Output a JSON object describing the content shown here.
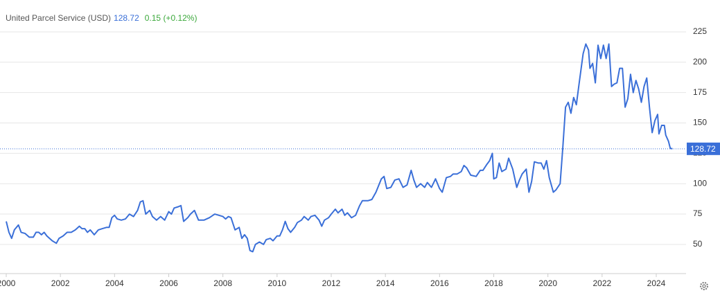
{
  "chart_data": {
    "type": "line",
    "title": "United Parcel Service (USD)",
    "last_price": 128.72,
    "change_label": "0.15 (+0.12%)",
    "color": "#3a6fd8",
    "grid": true,
    "xlim": [
      1999.77,
      2025.1
    ],
    "ylim": [
      26,
      251.2
    ],
    "xticks": [
      2000,
      2002,
      2004,
      2006,
      2008,
      2010,
      2012,
      2014,
      2016,
      2018,
      2020,
      2022,
      2024
    ],
    "yticks": [
      50,
      75,
      100,
      125,
      150,
      175,
      200,
      225
    ],
    "x": [
      2000.0,
      2000.1,
      2000.2,
      2000.3,
      2000.45,
      2000.55,
      2000.7,
      2000.85,
      2001.0,
      2001.1,
      2001.2,
      2001.3,
      2001.4,
      2001.5,
      2001.6,
      2001.7,
      2001.85,
      2001.95,
      2002.1,
      2002.25,
      2002.4,
      2002.55,
      2002.7,
      2002.8,
      2002.9,
      2003.0,
      2003.1,
      2003.25,
      2003.4,
      2003.55,
      2003.7,
      2003.8,
      2003.9,
      2004.0,
      2004.1,
      2004.25,
      2004.4,
      2004.55,
      2004.7,
      2004.85,
      2004.95,
      2005.05,
      2005.15,
      2005.3,
      2005.4,
      2005.55,
      2005.7,
      2005.85,
      2006.0,
      2006.1,
      2006.2,
      2006.35,
      2006.45,
      2006.55,
      2006.7,
      2006.8,
      2006.95,
      2007.1,
      2007.3,
      2007.5,
      2007.7,
      2007.85,
      2008.0,
      2008.1,
      2008.2,
      2008.3,
      2008.45,
      2008.6,
      2008.7,
      2008.8,
      2008.9,
      2009.0,
      2009.1,
      2009.2,
      2009.35,
      2009.5,
      2009.6,
      2009.75,
      2009.85,
      2010.0,
      2010.1,
      2010.2,
      2010.3,
      2010.4,
      2010.5,
      2010.65,
      2010.75,
      2010.9,
      2011.0,
      2011.15,
      2011.25,
      2011.4,
      2011.55,
      2011.65,
      2011.75,
      2011.9,
      2012.0,
      2012.15,
      2012.25,
      2012.4,
      2012.5,
      2012.6,
      2012.75,
      2012.9,
      2013.05,
      2013.15,
      2013.35,
      2013.5,
      2013.65,
      2013.85,
      2013.95,
      2014.05,
      2014.2,
      2014.35,
      2014.5,
      2014.65,
      2014.8,
      2014.95,
      2015.05,
      2015.15,
      2015.3,
      2015.45,
      2015.55,
      2015.7,
      2015.85,
      2016.0,
      2016.1,
      2016.25,
      2016.4,
      2016.5,
      2016.65,
      2016.8,
      2016.9,
      2017.0,
      2017.15,
      2017.35,
      2017.5,
      2017.6,
      2017.75,
      2017.85,
      2017.95,
      2018.0,
      2018.1,
      2018.2,
      2018.3,
      2018.45,
      2018.55,
      2018.7,
      2018.85,
      2018.95,
      2019.05,
      2019.2,
      2019.3,
      2019.4,
      2019.5,
      2019.65,
      2019.75,
      2019.85,
      2019.95,
      2020.05,
      2020.2,
      2020.3,
      2020.45,
      2020.55,
      2020.65,
      2020.75,
      2020.85,
      2020.95,
      2021.05,
      2021.15,
      2021.3,
      2021.4,
      2021.5,
      2021.55,
      2021.65,
      2021.75,
      2021.85,
      2021.95,
      2022.05,
      2022.15,
      2022.25,
      2022.35,
      2022.45,
      2022.55,
      2022.65,
      2022.75,
      2022.85,
      2022.95,
      2023.05,
      2023.15,
      2023.25,
      2023.35,
      2023.45,
      2023.55,
      2023.65,
      2023.75,
      2023.85,
      2023.95,
      2024.05,
      2024.1,
      2024.2,
      2024.3,
      2024.35,
      2024.45,
      2024.52,
      2024.6
    ],
    "values": [
      69,
      60,
      55,
      62,
      66,
      60,
      59,
      56,
      56,
      60,
      60,
      58,
      60,
      57,
      55,
      53,
      51,
      55,
      57,
      60,
      60,
      62,
      65,
      63,
      63,
      60,
      62,
      58,
      62,
      63,
      64,
      64,
      72,
      74,
      71,
      70,
      71,
      75,
      73,
      78,
      85,
      86,
      75,
      78,
      73,
      70,
      73,
      70,
      77,
      75,
      80,
      81,
      82,
      69,
      72,
      75,
      78,
      70,
      70,
      72,
      75,
      74,
      73,
      71,
      73,
      72,
      62,
      64,
      55,
      58,
      55,
      45,
      44,
      50,
      52,
      50,
      54,
      55,
      53,
      57,
      57,
      62,
      69,
      63,
      60,
      64,
      68,
      70,
      73,
      70,
      73,
      74,
      70,
      65,
      70,
      72,
      75,
      79,
      76,
      79,
      74,
      76,
      72,
      74,
      82,
      86,
      86,
      87,
      93,
      104,
      106,
      96,
      97,
      103,
      104,
      97,
      99,
      111,
      103,
      97,
      100,
      97,
      101,
      97,
      104,
      96,
      93,
      105,
      106,
      108,
      108,
      110,
      115,
      113,
      107,
      106,
      111,
      111,
      116,
      119,
      125,
      104,
      105,
      117,
      110,
      112,
      121,
      112,
      97,
      103,
      108,
      112,
      93,
      102,
      118,
      117,
      117,
      112,
      119,
      105,
      93,
      95,
      100,
      130,
      163,
      167,
      158,
      171,
      165,
      182,
      207,
      215,
      210,
      195,
      199,
      183,
      214,
      203,
      214,
      203,
      215,
      180,
      182,
      183,
      195,
      195,
      163,
      170,
      190,
      175,
      185,
      178,
      167,
      180,
      187,
      163,
      142,
      152,
      157,
      141,
      148,
      148,
      140,
      135,
      129,
      128.72
    ]
  }
}
